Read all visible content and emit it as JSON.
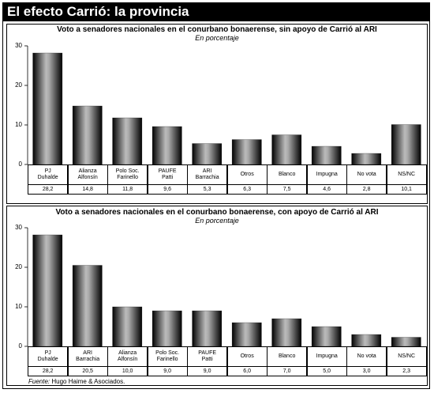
{
  "header": {
    "title": "El efecto Carrió: la provincia"
  },
  "source": {
    "label": "Fuente:",
    "text": "Hugo Haime & Asociados."
  },
  "chart_data": [
    {
      "type": "bar",
      "title": "Voto a senadores nacionales en el conurbano bonaerense, sin apoyo de Carrió al ARI",
      "subtitle": "En porcentaje",
      "categories": [
        "PJ\nDuhalde",
        "Alianza\nAlfonsín",
        "Polo Soc.\nFarinello",
        "PAUFE\nPatti",
        "ARI\nBarrachia",
        "Otros",
        "Blanco",
        "Impugna",
        "No vota",
        "NS/NC"
      ],
      "values": [
        28.2,
        14.8,
        11.8,
        9.6,
        5.3,
        6.3,
        7.5,
        4.6,
        2.8,
        10.1
      ],
      "value_labels": [
        "28,2",
        "14,8",
        "11,8",
        "9,6",
        "5,3",
        "6,3",
        "7,5",
        "4,6",
        "2,8",
        "10,1"
      ],
      "color": "#222222",
      "ylim": [
        0,
        30
      ],
      "yticks": [
        0,
        10,
        20,
        30
      ],
      "grid": false
    },
    {
      "type": "bar",
      "title": "Voto a senadores nacionales en el conurbano bonaerense, con apoyo de Carrió al ARI",
      "subtitle": "En porcentaje",
      "categories": [
        "PJ\nDuhalde",
        "ARI\nBarrachia",
        "Alianza\nAlfonsín",
        "Polo Soc.\nFarinello",
        "PAUFE\nPatti",
        "Otros",
        "Blanco",
        "Impugna",
        "No vota",
        "NS/NC"
      ],
      "values": [
        28.2,
        20.5,
        10.0,
        9.0,
        9.0,
        6.0,
        7.0,
        5.0,
        3.0,
        2.3
      ],
      "value_labels": [
        "28,2",
        "20,5",
        "10,0",
        "9,0",
        "9,0",
        "6,0",
        "7,0",
        "5,0",
        "3,0",
        "2,3"
      ],
      "color": "#222222",
      "ylim": [
        0,
        30
      ],
      "yticks": [
        0,
        10,
        20,
        30
      ],
      "grid": false
    }
  ]
}
